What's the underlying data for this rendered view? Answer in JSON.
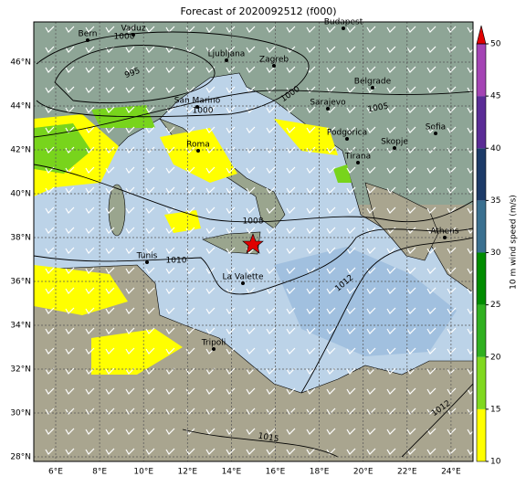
{
  "title": "Forecast of 2020092512 (f000)",
  "lon_ticks": [
    "6°E",
    "8°E",
    "10°E",
    "12°E",
    "14°E",
    "16°E",
    "18°E",
    "20°E",
    "22°E",
    "24°E"
  ],
  "lat_ticks": [
    "28°N",
    "30°N",
    "32°N",
    "34°N",
    "36°N",
    "38°N",
    "40°N",
    "42°N",
    "44°N",
    "46°N"
  ],
  "cities": [
    "Bern",
    "Vaduz",
    "Budapest",
    "Ljubljana",
    "Zagreb",
    "San Marino",
    "Sarajevo",
    "Belgrade",
    "Podgorica",
    "Sofia",
    "Roma",
    "Skopje",
    "Tirana",
    "Athens",
    "Tunis",
    "La Valette",
    "Tripoli"
  ],
  "isobar_labels": [
    "995",
    "1000",
    "1000",
    "1000",
    "1005",
    "1008",
    "1010",
    "1012",
    "1012",
    "1015"
  ],
  "colorbar": {
    "label": "10 m wind speed (m/s)",
    "ticks": [
      10,
      15,
      20,
      25,
      30,
      35,
      40,
      45,
      50
    ],
    "colors": [
      "#ffff00",
      "#80d820",
      "#30b020",
      "#008c00",
      "#3a7090",
      "#1c3a68",
      "#5a2c96",
      "#a444b4"
    ],
    "extend_color": "#e00000"
  }
}
